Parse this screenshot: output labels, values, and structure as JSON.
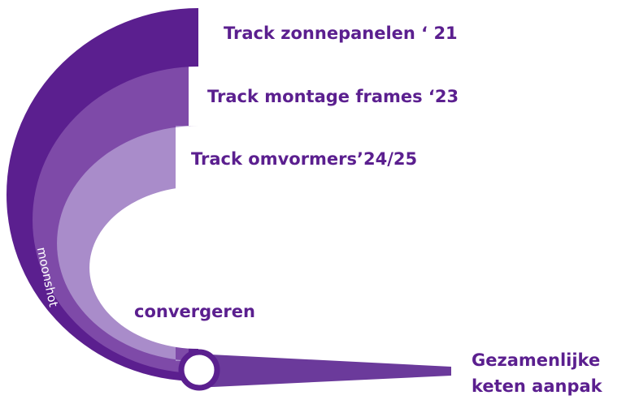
{
  "tracks": [
    {
      "label": "Track zonnepanelen ‘ 21"
    },
    {
      "label": "Track montage frames  ‘23"
    },
    {
      "label": "Track omvormers’24/25"
    }
  ],
  "arc_label": "moonshot",
  "merge_label": "convergeren",
  "outcome": {
    "lines": [
      "Gezamenlijke",
      "keten aanpak"
    ]
  }
}
